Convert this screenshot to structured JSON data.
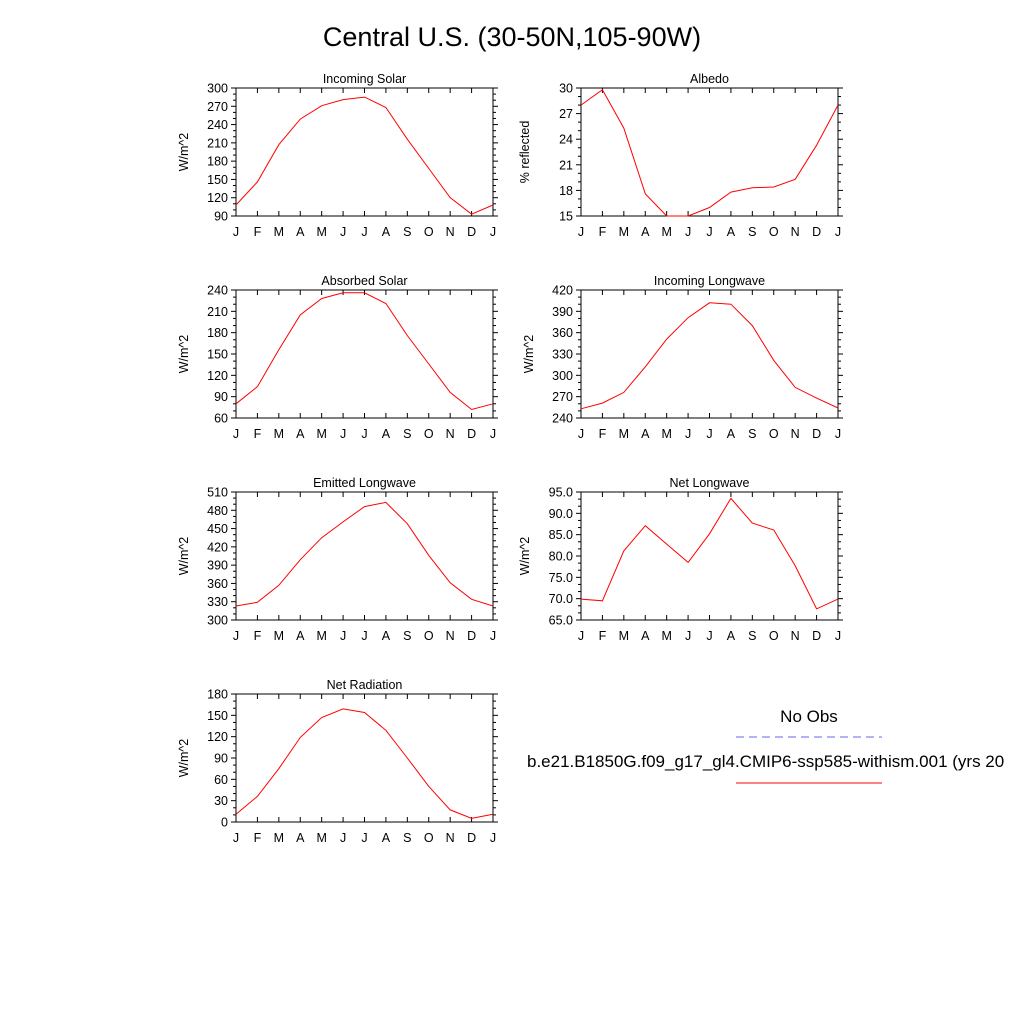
{
  "figure": {
    "title": "Central U.S. (30-50N,105-90W)"
  },
  "legend": {
    "obs_label": "No Obs",
    "obs_color": "#6666ee",
    "model_label": "b.e21.B1850G.f09_g17_gl4.CMIP6-ssp585-withism.001 (yrs 20",
    "model_color": "#ff0000"
  },
  "chart_data": [
    {
      "type": "line",
      "title": "Incoming Solar",
      "xlabel": "",
      "ylabel": "W/m^2",
      "categories": [
        "J",
        "F",
        "M",
        "A",
        "M",
        "J",
        "J",
        "A",
        "S",
        "O",
        "N",
        "D",
        "J"
      ],
      "ylim": [
        90,
        300
      ],
      "yticks": [
        "90",
        "120",
        "150",
        "180",
        "210",
        "240",
        "270",
        "300"
      ],
      "series": [
        {
          "values": [
            108,
            146,
            207,
            249,
            271,
            281,
            285,
            268,
            216,
            168,
            120,
            93,
            108
          ]
        }
      ]
    },
    {
      "type": "line",
      "title": "Albedo",
      "xlabel": "",
      "ylabel": "% reflected",
      "categories": [
        "J",
        "F",
        "M",
        "A",
        "M",
        "J",
        "J",
        "A",
        "S",
        "O",
        "N",
        "D",
        "J"
      ],
      "ylim": [
        15,
        30
      ],
      "yticks": [
        "15",
        "18",
        "21",
        "24",
        "27",
        "30"
      ],
      "series": [
        {
          "values": [
            28.0,
            29.8,
            25.3,
            17.6,
            15.0,
            15.0,
            16.0,
            17.8,
            18.3,
            18.4,
            19.3,
            23.3,
            28.0
          ]
        }
      ]
    },
    {
      "type": "line",
      "title": "Absorbed Solar",
      "xlabel": "",
      "ylabel": "W/m^2",
      "categories": [
        "J",
        "F",
        "M",
        "A",
        "M",
        "J",
        "J",
        "A",
        "S",
        "O",
        "N",
        "D",
        "J"
      ],
      "ylim": [
        60,
        240
      ],
      "yticks": [
        "60",
        "90",
        "120",
        "150",
        "180",
        "210",
        "240"
      ],
      "series": [
        {
          "values": [
            80,
            104,
            156,
            205,
            228,
            236,
            236,
            221,
            176,
            136,
            96,
            72,
            80
          ]
        }
      ]
    },
    {
      "type": "line",
      "title": "Incoming Longwave",
      "xlabel": "",
      "ylabel": "W/m^2",
      "categories": [
        "J",
        "F",
        "M",
        "A",
        "M",
        "J",
        "J",
        "A",
        "S",
        "O",
        "N",
        "D",
        "J"
      ],
      "ylim": [
        240,
        420
      ],
      "yticks": [
        "240",
        "270",
        "300",
        "330",
        "360",
        "390",
        "420"
      ],
      "series": [
        {
          "values": [
            253,
            261,
            276,
            312,
            351,
            381,
            402,
            400,
            370,
            321,
            283,
            268,
            254
          ]
        }
      ]
    },
    {
      "type": "line",
      "title": "Emitted Longwave",
      "xlabel": "",
      "ylabel": "W/m^2",
      "categories": [
        "J",
        "F",
        "M",
        "A",
        "M",
        "J",
        "J",
        "A",
        "S",
        "O",
        "N",
        "D",
        "J"
      ],
      "ylim": [
        300,
        510
      ],
      "yticks": [
        "300",
        "330",
        "360",
        "390",
        "420",
        "450",
        "480",
        "510"
      ],
      "series": [
        {
          "values": [
            323,
            329,
            357,
            399,
            435,
            461,
            486,
            493,
            458,
            406,
            361,
            334,
            323
          ]
        }
      ]
    },
    {
      "type": "line",
      "title": "Net Longwave",
      "xlabel": "",
      "ylabel": "W/m^2",
      "categories": [
        "J",
        "F",
        "M",
        "A",
        "M",
        "J",
        "J",
        "A",
        "S",
        "O",
        "N",
        "D",
        "J"
      ],
      "ylim": [
        65,
        95
      ],
      "yticks": [
        "65.0",
        "70.0",
        "75.0",
        "80.0",
        "85.0",
        "90.0",
        "95.0"
      ],
      "series": [
        {
          "values": [
            69.9,
            69.5,
            81.2,
            87.1,
            82.8,
            78.5,
            85.2,
            93.5,
            87.7,
            86.1,
            77.7,
            67.6,
            69.9
          ]
        }
      ]
    },
    {
      "type": "line",
      "title": "Net Radiation",
      "xlabel": "",
      "ylabel": "W/m^2",
      "categories": [
        "J",
        "F",
        "M",
        "A",
        "M",
        "J",
        "J",
        "A",
        "S",
        "O",
        "N",
        "D",
        "J"
      ],
      "ylim": [
        0,
        180
      ],
      "yticks": [
        "0",
        "30",
        "60",
        "90",
        "120",
        "150",
        "180"
      ],
      "series": [
        {
          "values": [
            11,
            36,
            75,
            119,
            147,
            159,
            154,
            129,
            90,
            50,
            17,
            5,
            11
          ]
        }
      ]
    }
  ]
}
